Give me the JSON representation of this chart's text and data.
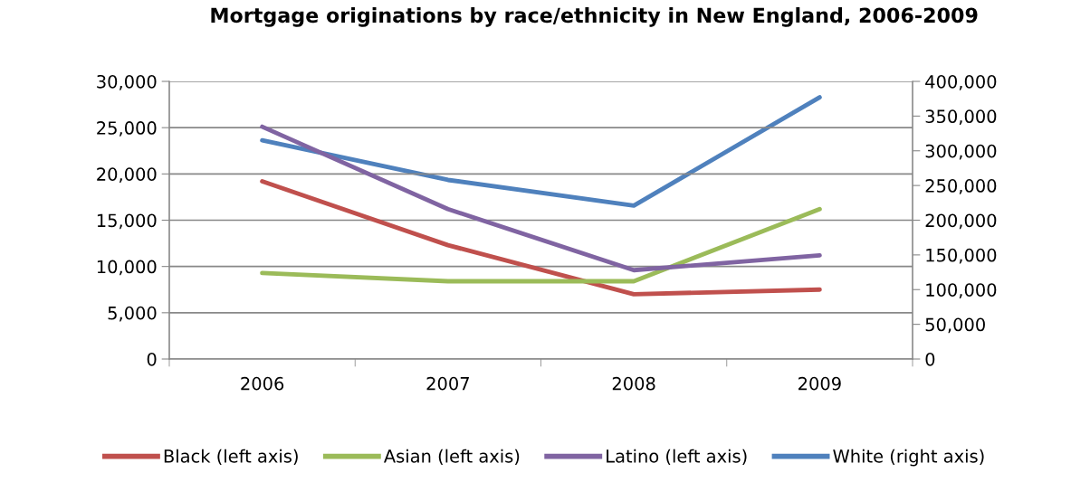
{
  "chart_data": {
    "type": "line",
    "title": "Mortgage originations by race/ethnicity in New England, 2006-2009",
    "categories": [
      "2006",
      "2007",
      "2008",
      "2009"
    ],
    "series": [
      {
        "name": "Black (left axis)",
        "color": "#c0504d",
        "values": [
          19200,
          12300,
          7000,
          7500
        ]
      },
      {
        "name": "Asian (left axis)",
        "color": "#9bbb59",
        "values": [
          9300,
          8400,
          8400,
          16200
        ]
      },
      {
        "name": "Latino (left axis)",
        "color": "#8064a2",
        "values": [
          25100,
          16200,
          9600,
          11200
        ]
      },
      {
        "name": "White (right axis)",
        "color": "#4f81bd",
        "axis": "y2",
        "values": [
          315000,
          258000,
          221000,
          377000
        ]
      }
    ],
    "ylim": [
      0,
      30000
    ],
    "yticks": [
      {
        "value": 0,
        "label": "0"
      },
      {
        "value": 5000,
        "label": "5,000"
      },
      {
        "value": 10000,
        "label": "10,000"
      },
      {
        "value": 15000,
        "label": "15,000"
      },
      {
        "value": 20000,
        "label": "20,000"
      },
      {
        "value": 25000,
        "label": "25,000"
      },
      {
        "value": 30000,
        "label": "30,000"
      }
    ],
    "y2lim": [
      0,
      400000
    ],
    "y2ticks": [
      {
        "value": 0,
        "label": "0"
      },
      {
        "value": 50000,
        "label": "50,000"
      },
      {
        "value": 100000,
        "label": "100,000"
      },
      {
        "value": 150000,
        "label": "150,000"
      },
      {
        "value": 200000,
        "label": "200,000"
      },
      {
        "value": 250000,
        "label": "250,000"
      },
      {
        "value": 300000,
        "label": "300,000"
      },
      {
        "value": 350000,
        "label": "350,000"
      },
      {
        "value": 400000,
        "label": "400,000"
      }
    ],
    "grid": "y",
    "legend": "bottom",
    "marker": "none",
    "line_style": "solid"
  }
}
